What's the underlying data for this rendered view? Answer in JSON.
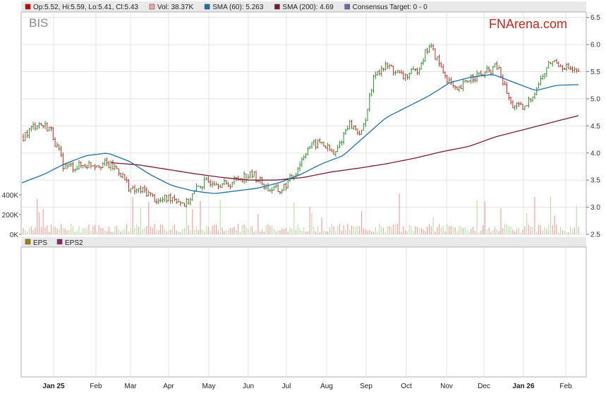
{
  "header": {
    "legend": [
      {
        "label": "Op:5.52, Hi:5.59, Lo:5.41, Cl:5.43",
        "color": "#cc0000"
      },
      {
        "label": "Vol: 38.37K",
        "color": "#f2a3a3"
      },
      {
        "label": "SMA (60): 5.263",
        "color": "#1f6fa8"
      },
      {
        "label": "SMA (200): 4.69",
        "color": "#7a1c2e"
      },
      {
        "label": "Consensus Target: 0 - 0",
        "color": "#6f6f9f"
      }
    ]
  },
  "ticker": "BIS",
  "brand": "FNArena.com",
  "eps_legend": [
    {
      "label": "EPS",
      "color": "#a08400"
    },
    {
      "label": "EPS2",
      "color": "#8a2a6a"
    }
  ],
  "chart_data": {
    "type": "candlestick",
    "x_labels": [
      "Jan 25",
      "Feb",
      "Mar",
      "Apr",
      "May",
      "Jun",
      "Jul",
      "Aug",
      "Sep",
      "Oct",
      "Nov",
      "Dec",
      "Jan 26",
      "Feb"
    ],
    "y_ticks": [
      "2.5",
      "3.0",
      "3.5",
      "4.0",
      "4.5",
      "5.0",
      "5.5",
      "6.0",
      "6.5"
    ],
    "ylim": [
      2.5,
      6.6
    ],
    "volume_ticks": [
      "0K",
      "200K",
      "400K"
    ],
    "volume_max_k": 500,
    "price_close": [
      4.3,
      4.55,
      4.45,
      3.75,
      3.75,
      3.8,
      3.8,
      3.7,
      3.3,
      3.3,
      3.1,
      3.2,
      3.05,
      3.4,
      3.5,
      3.4,
      3.55,
      3.6,
      3.35,
      3.3,
      3.6,
      4.1,
      4.2,
      3.95,
      4.55,
      4.35,
      5.5,
      5.6,
      5.4,
      5.5,
      6.0,
      5.5,
      5.1,
      5.4,
      5.45,
      5.6,
      4.9,
      4.8,
      5.25,
      5.7,
      5.6,
      5.45
    ],
    "sma60": [
      3.45,
      3.6,
      3.8,
      3.95,
      4.0,
      3.85,
      3.6,
      3.4,
      3.3,
      3.25,
      3.3,
      3.35,
      3.45,
      3.6,
      3.8,
      3.95,
      4.3,
      4.65,
      4.85,
      5.05,
      5.3,
      5.4,
      5.45,
      5.3,
      5.15,
      5.25,
      5.26
    ],
    "sma200": [
      3.82,
      3.78,
      3.7,
      3.62,
      3.55,
      3.5,
      3.5,
      3.55,
      3.65,
      3.72,
      3.8,
      3.9,
      4.02,
      4.12,
      4.3,
      4.43,
      4.56,
      4.69
    ],
    "legend_position": "top"
  }
}
